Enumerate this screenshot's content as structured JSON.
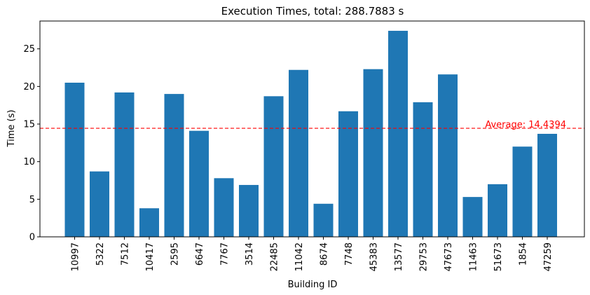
{
  "chart_data": {
    "type": "bar",
    "title": "Execution Times, total: 288.7883 s",
    "xlabel": "Building ID",
    "ylabel": "Time (s)",
    "ylim": [
      0,
      28.7
    ],
    "yticks": [
      0,
      5,
      10,
      15,
      20,
      25
    ],
    "grid": false,
    "categories": [
      "10997",
      "5322",
      "7512",
      "10417",
      "2595",
      "6647",
      "7767",
      "3514",
      "22485",
      "11042",
      "8674",
      "7748",
      "45383",
      "13577",
      "29753",
      "47673",
      "11463",
      "51673",
      "1854",
      "47259"
    ],
    "values": [
      20.5,
      8.7,
      19.2,
      3.8,
      19.0,
      14.1,
      7.8,
      6.9,
      18.7,
      22.2,
      4.4,
      16.7,
      22.3,
      27.4,
      17.9,
      21.6,
      5.3,
      7.0,
      12.0,
      13.7
    ],
    "bar_color": "#1f77b4",
    "average": {
      "value": 14.4394,
      "label": "Average: 14.4394",
      "color": "#ff0000",
      "style": "dashed"
    }
  }
}
